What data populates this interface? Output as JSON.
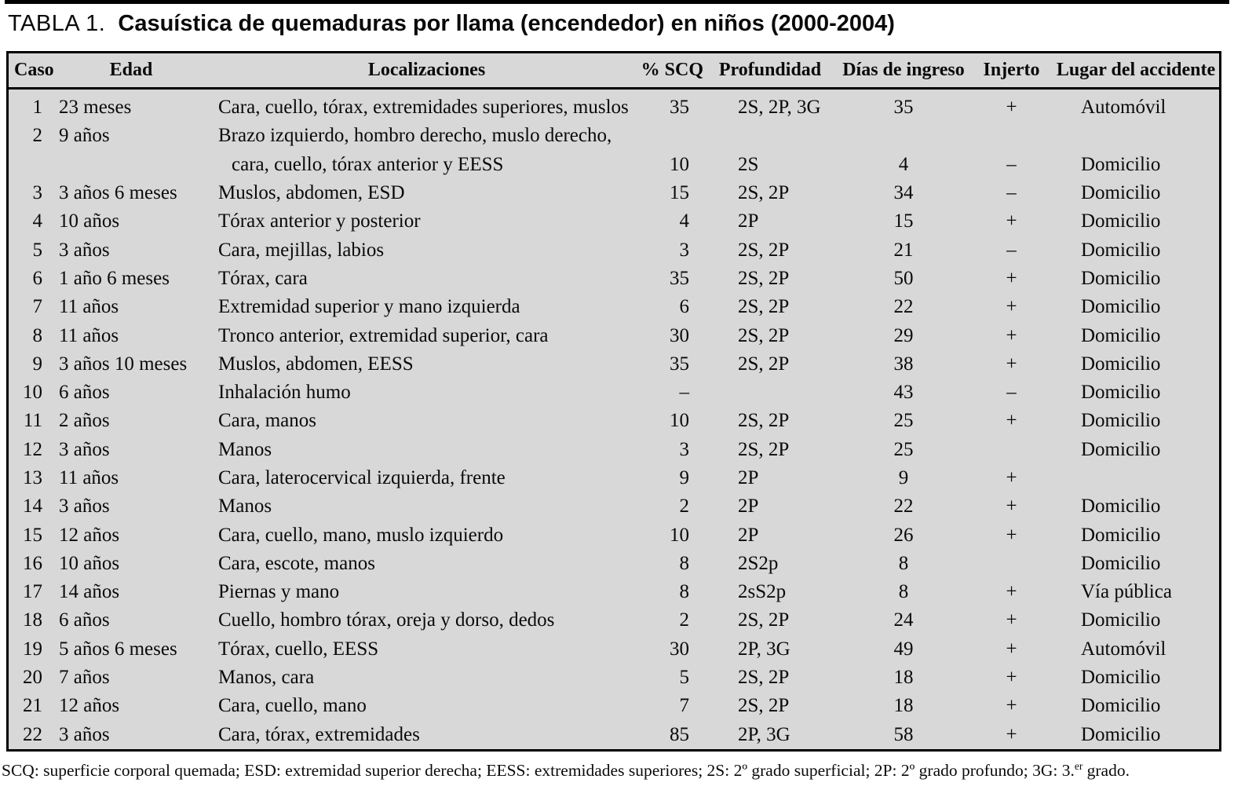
{
  "title": {
    "label": "TABLA 1.",
    "text": "Casuística de quemaduras por llama (encendedor) en niños (2000-2004)"
  },
  "table": {
    "headers": [
      "Caso",
      "Edad",
      "Localizaciones",
      "% SCQ",
      "Profundidad",
      "Días de ingreso",
      "Injerto",
      "Lugar del accidente"
    ],
    "rows": [
      {
        "caso": "1",
        "edad": "23 meses",
        "loc": "Cara, cuello, tórax, extremidades superiores, muslos",
        "scq": "35",
        "prof": "2S, 2P, 3G",
        "dias": "35",
        "injerto": "+",
        "lugar": "Automóvil"
      },
      {
        "caso": "2",
        "edad": "9 años",
        "loc": "Brazo izquierdo, hombro derecho, muslo derecho,",
        "loc2": "cara, cuello, tórax anterior y EESS",
        "scq": "10",
        "prof": "2S",
        "dias": "4",
        "injerto": "–",
        "lugar": "Domicilio"
      },
      {
        "caso": "3",
        "edad": "3 años 6 meses",
        "loc": "Muslos, abdomen, ESD",
        "scq": "15",
        "prof": "2S, 2P",
        "dias": "34",
        "injerto": "–",
        "lugar": "Domicilio"
      },
      {
        "caso": "4",
        "edad": "10 años",
        "loc": "Tórax anterior y posterior",
        "scq": "4",
        "prof": "2P",
        "dias": "15",
        "injerto": "+",
        "lugar": "Domicilio"
      },
      {
        "caso": "5",
        "edad": "3 años",
        "loc": "Cara, mejillas, labios",
        "scq": "3",
        "prof": "2S, 2P",
        "dias": "21",
        "injerto": "–",
        "lugar": "Domicilio"
      },
      {
        "caso": "6",
        "edad": "1 año 6 meses",
        "loc": "Tórax, cara",
        "scq": "35",
        "prof": "2S, 2P",
        "dias": "50",
        "injerto": "+",
        "lugar": "Domicilio"
      },
      {
        "caso": "7",
        "edad": "11 años",
        "loc": "Extremidad superior y mano izquierda",
        "scq": "6",
        "prof": "2S, 2P",
        "dias": "22",
        "injerto": "+",
        "lugar": "Domicilio"
      },
      {
        "caso": "8",
        "edad": "11 años",
        "loc": "Tronco anterior, extremidad superior, cara",
        "scq": "30",
        "prof": "2S, 2P",
        "dias": "29",
        "injerto": "+",
        "lugar": "Domicilio"
      },
      {
        "caso": "9",
        "edad": "3 años 10 meses",
        "loc": "Muslos, abdomen, EESS",
        "scq": "35",
        "prof": "2S, 2P",
        "dias": "38",
        "injerto": "+",
        "lugar": "Domicilio"
      },
      {
        "caso": "10",
        "edad": "6 años",
        "loc": "Inhalación humo",
        "scq": "–",
        "prof": "",
        "dias": "43",
        "injerto": "–",
        "lugar": "Domicilio"
      },
      {
        "caso": "11",
        "edad": "2 años",
        "loc": "Cara, manos",
        "scq": "10",
        "prof": "2S, 2P",
        "dias": "25",
        "injerto": "+",
        "lugar": "Domicilio"
      },
      {
        "caso": "12",
        "edad": "3 años",
        "loc": "Manos",
        "scq": "3",
        "prof": "2S, 2P",
        "dias": "25",
        "injerto": "",
        "lugar": "Domicilio"
      },
      {
        "caso": "13",
        "edad": "11 años",
        "loc": "Cara, laterocervical izquierda, frente",
        "scq": "9",
        "prof": "2P",
        "dias": "9",
        "injerto": "+",
        "lugar": ""
      },
      {
        "caso": "14",
        "edad": "3 años",
        "loc": "Manos",
        "scq": "2",
        "prof": "2P",
        "dias": "22",
        "injerto": "+",
        "lugar": "Domicilio"
      },
      {
        "caso": "15",
        "edad": "12 años",
        "loc": "Cara, cuello, mano, muslo izquierdo",
        "scq": "10",
        "prof": "2P",
        "dias": "26",
        "injerto": "+",
        "lugar": "Domicilio"
      },
      {
        "caso": "16",
        "edad": "10 años",
        "loc": "Cara, escote, manos",
        "scq": "8",
        "prof": "2S2p",
        "dias": "8",
        "injerto": "",
        "lugar": "Domicilio"
      },
      {
        "caso": "17",
        "edad": "14 años",
        "loc": "Piernas y mano",
        "scq": "8",
        "prof": "2sS2p",
        "dias": "8",
        "injerto": "+",
        "lugar": "Vía pública"
      },
      {
        "caso": "18",
        "edad": "6 años",
        "loc": "Cuello, hombro tórax, oreja y dorso, dedos",
        "scq": "2",
        "prof": "2S, 2P",
        "dias": "24",
        "injerto": "+",
        "lugar": "Domicilio"
      },
      {
        "caso": "19",
        "edad": "5 años 6 meses",
        "loc": "Tórax, cuello, EESS",
        "scq": "30",
        "prof": "2P, 3G",
        "dias": "49",
        "injerto": "+",
        "lugar": "Automóvil"
      },
      {
        "caso": "20",
        "edad": "7 años",
        "loc": "Manos, cara",
        "scq": "5",
        "prof": "2S, 2P",
        "dias": "18",
        "injerto": "+",
        "lugar": "Domicilio"
      },
      {
        "caso": "21",
        "edad": "12 años",
        "loc": "Cara, cuello, mano",
        "scq": "7",
        "prof": "2S, 2P",
        "dias": "18",
        "injerto": "+",
        "lugar": "Domicilio"
      },
      {
        "caso": "22",
        "edad": "3 años",
        "loc": "Cara, tórax, extremidades",
        "scq": "85",
        "prof": "2P, 3G",
        "dias": "58",
        "injerto": "+",
        "lugar": "Domicilio"
      }
    ]
  },
  "footnote": {
    "pre": "SCQ: superficie corporal quemada; ESD: extremidad superior derecha; EESS: extremidades superiores; 2S: 2º grado superficial; 2P: 2º grado profundo; 3G: 3.",
    "sup": "er",
    "post": " grado."
  },
  "colors": {
    "table_bg": "#d8d8d8",
    "border": "#000000",
    "text": "#0a0a0a"
  }
}
